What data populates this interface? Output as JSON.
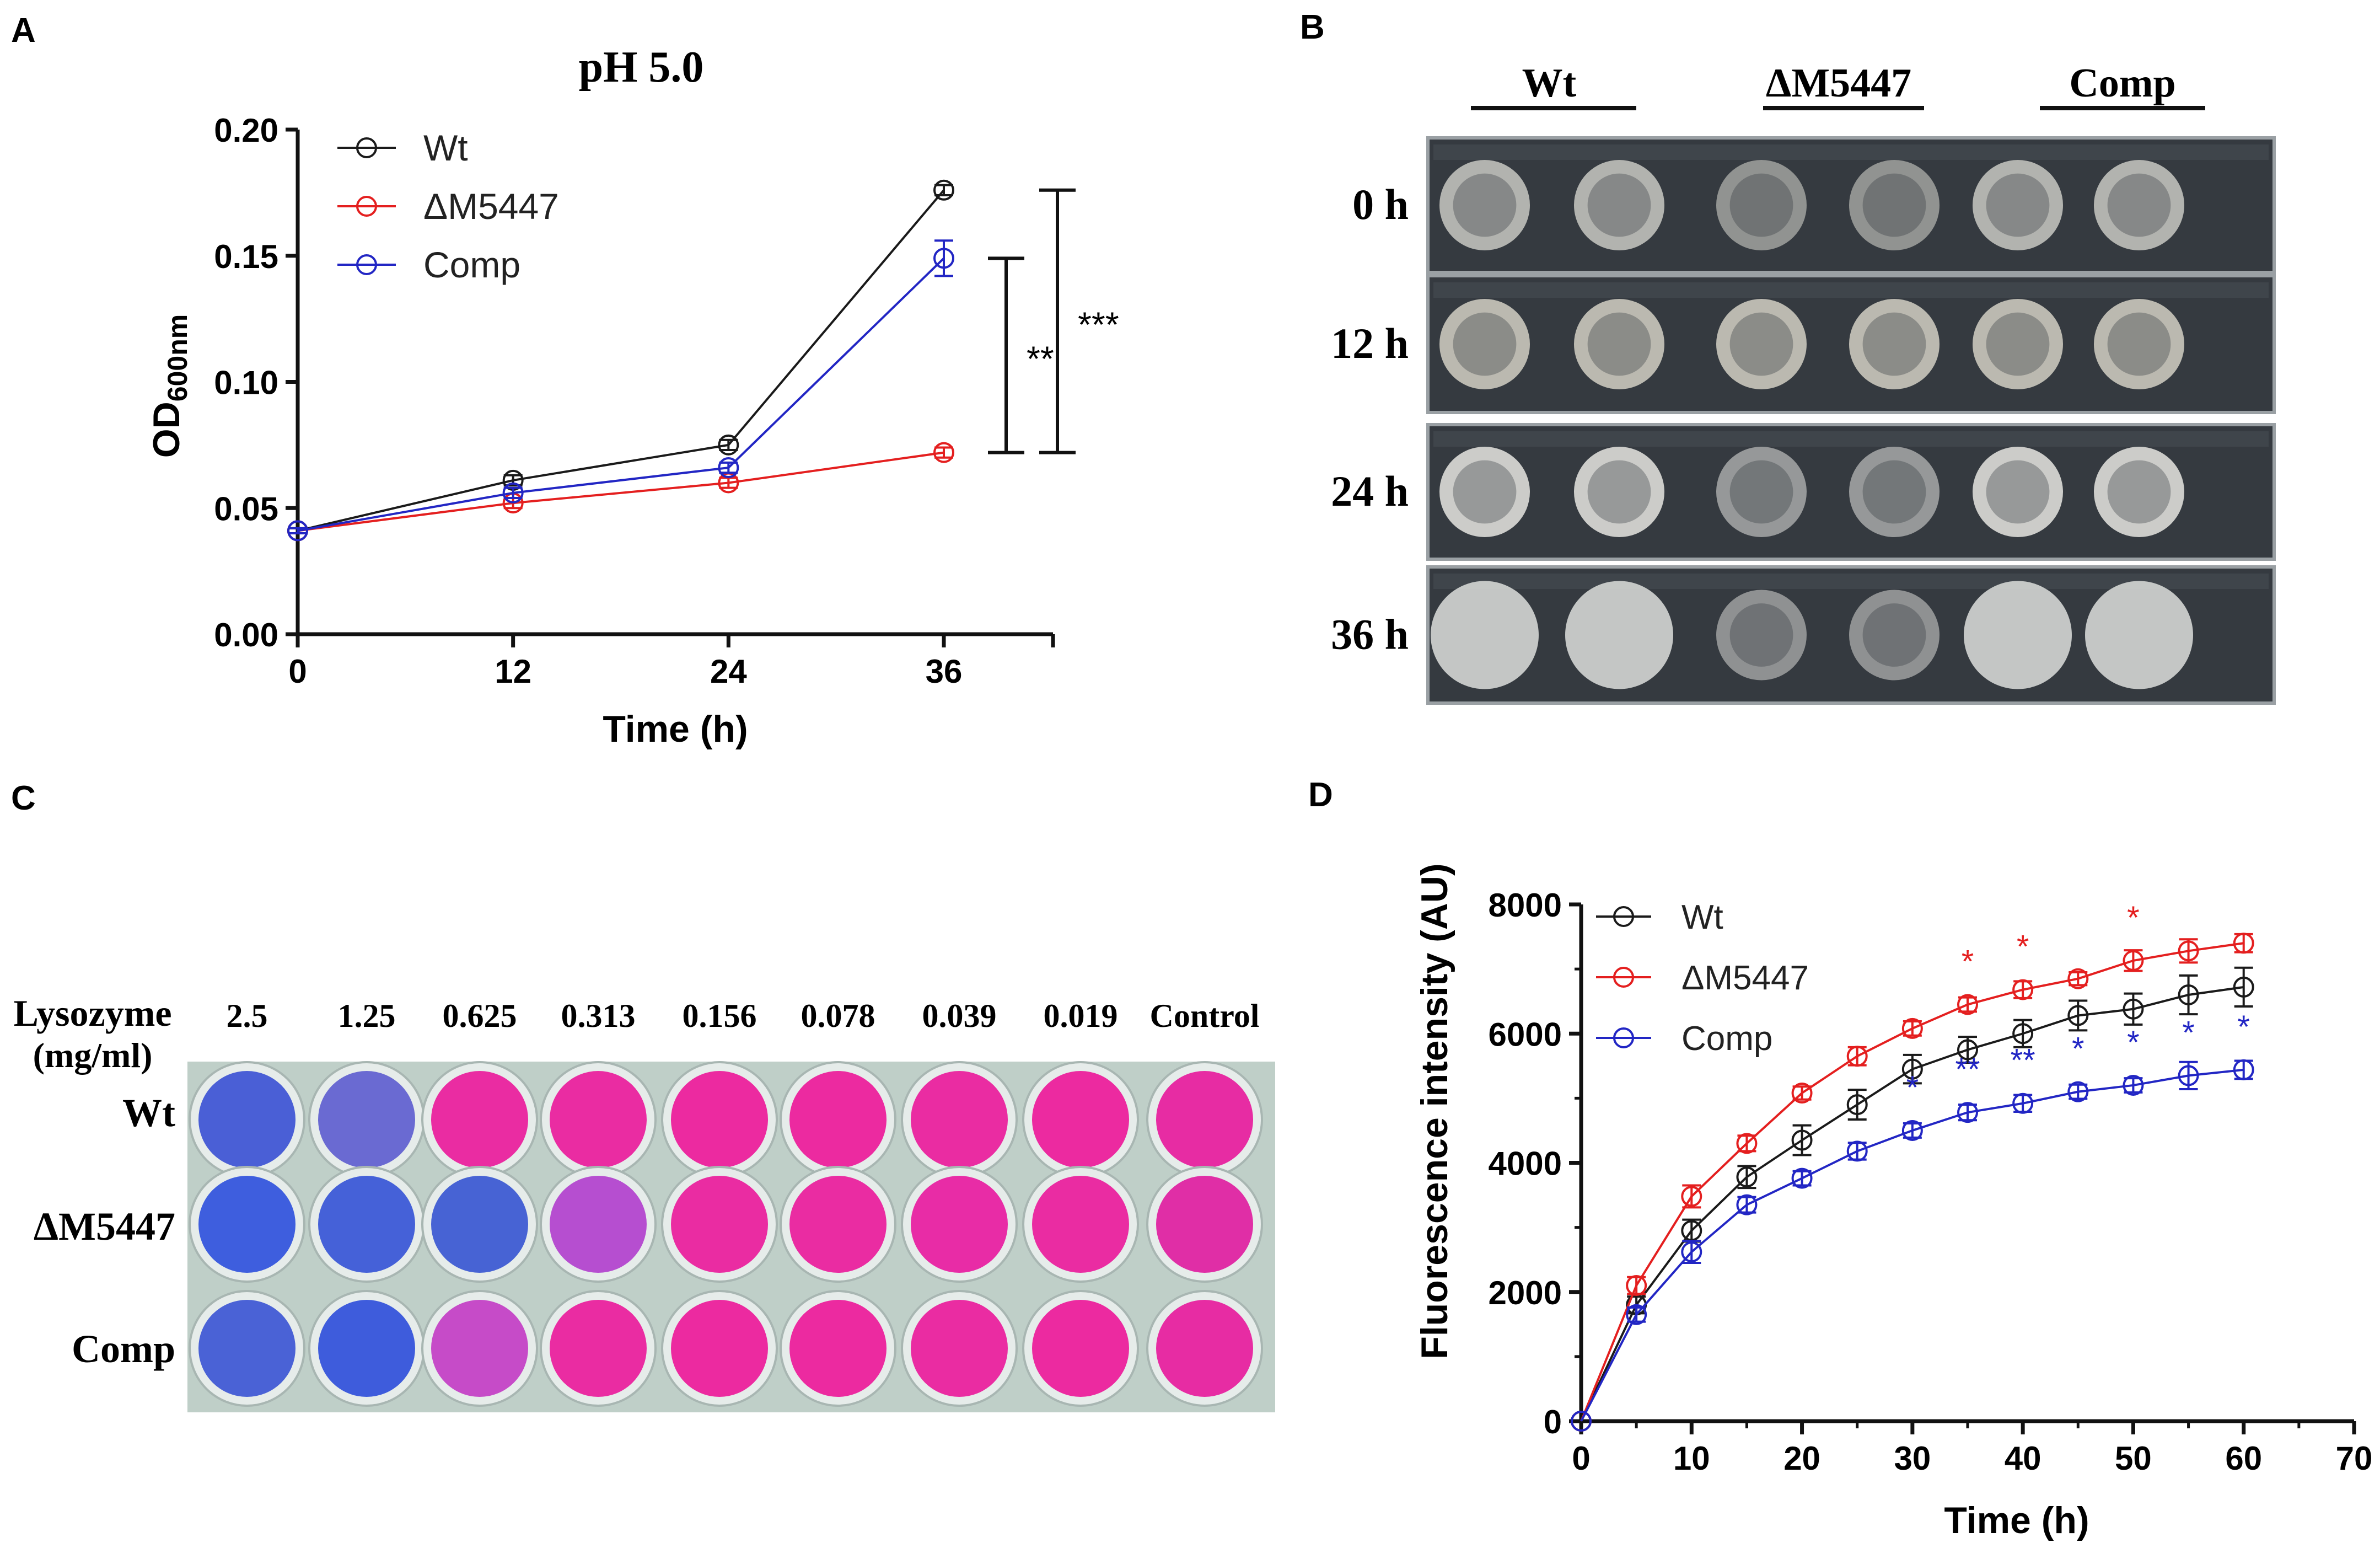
{
  "panels": {
    "a": "A",
    "b": "B",
    "c": "C",
    "d": "D"
  },
  "chart_data": [
    {
      "id": "A",
      "type": "line",
      "title": "pH 5.0",
      "xlabel": "Time (h)",
      "ylabel_main": "OD",
      "ylabel_sub": "600nm",
      "x": [
        0,
        12,
        24,
        36
      ],
      "xticks": [
        "0",
        "12",
        "24",
        "36"
      ],
      "yticks": [
        "0.00",
        "0.05",
        "0.10",
        "0.15",
        "0.20"
      ],
      "ylim": [
        0,
        0.2
      ],
      "series": [
        {
          "name": "Wt",
          "color": "#1a1a1a",
          "values": [
            0.041,
            0.061,
            0.075,
            0.176
          ],
          "err": [
            0.001,
            0.002,
            0.002,
            0.002
          ]
        },
        {
          "name": "ΔM5447",
          "color": "#e41f1f",
          "values": [
            0.041,
            0.052,
            0.06,
            0.072
          ],
          "err": [
            0.001,
            0.002,
            0.002,
            0.002
          ]
        },
        {
          "name": "Comp",
          "color": "#2226c4",
          "values": [
            0.041,
            0.056,
            0.066,
            0.149
          ],
          "err": [
            0.001,
            0.002,
            0.002,
            0.007
          ]
        }
      ],
      "significance": [
        {
          "label": "**",
          "from": 0.072,
          "to": 0.149
        },
        {
          "label": "***",
          "from": 0.072,
          "to": 0.176
        }
      ]
    },
    {
      "id": "D",
      "type": "line",
      "title": "",
      "xlabel": "Time (h)",
      "ylabel": "Fluorescence intensity (AU)",
      "x": [
        0,
        5,
        10,
        15,
        20,
        25,
        30,
        35,
        40,
        45,
        50,
        55,
        60
      ],
      "xticks": [
        "0",
        "10",
        "20",
        "30",
        "40",
        "50",
        "60",
        "70"
      ],
      "yticks": [
        "0",
        "2000",
        "4000",
        "6000",
        "8000"
      ],
      "xlim": [
        0,
        70
      ],
      "ylim": [
        0,
        8000
      ],
      "series": [
        {
          "name": "Wt",
          "color": "#1a1a1a",
          "values": [
            0,
            1800,
            2950,
            3780,
            4350,
            4900,
            5450,
            5750,
            6000,
            6280,
            6380,
            6600,
            6720
          ],
          "err": [
            0,
            130,
            170,
            170,
            230,
            230,
            220,
            200,
            210,
            230,
            240,
            300,
            300
          ]
        },
        {
          "name": "ΔM5447",
          "color": "#e41f1f",
          "values": [
            0,
            2100,
            3480,
            4300,
            5080,
            5650,
            6080,
            6450,
            6680,
            6850,
            7130,
            7280,
            7400
          ],
          "err": [
            0,
            130,
            170,
            120,
            100,
            140,
            110,
            110,
            130,
            100,
            160,
            180,
            140
          ]
        },
        {
          "name": "Comp",
          "color": "#2226c4",
          "values": [
            0,
            1650,
            2620,
            3350,
            3760,
            4180,
            4500,
            4780,
            4920,
            5100,
            5200,
            5350,
            5440
          ],
          "err": [
            0,
            110,
            170,
            120,
            110,
            130,
            110,
            120,
            130,
            110,
            110,
            210,
            140
          ]
        }
      ],
      "stars": [
        {
          "x": 35,
          "y": 6450,
          "label": "*",
          "color": "#e41f1f"
        },
        {
          "x": 40,
          "y": 6680,
          "label": "*",
          "color": "#e41f1f"
        },
        {
          "x": 50,
          "y": 7130,
          "label": "*",
          "color": "#e41f1f"
        },
        {
          "x": 30,
          "y": 4500,
          "label": "*",
          "color": "#2226c4"
        },
        {
          "x": 35,
          "y": 4780,
          "label": "**",
          "color": "#2226c4"
        },
        {
          "x": 40,
          "y": 4920,
          "label": "**",
          "color": "#2226c4"
        },
        {
          "x": 45,
          "y": 5100,
          "label": "*",
          "color": "#2226c4"
        },
        {
          "x": 50,
          "y": 5200,
          "label": "*",
          "color": "#2226c4"
        },
        {
          "x": 55,
          "y": 5350,
          "label": "*",
          "color": "#2226c4"
        },
        {
          "x": 60,
          "y": 5440,
          "label": "*",
          "color": "#2226c4"
        }
      ]
    }
  ],
  "panel_b": {
    "groups": [
      "Wt",
      "ΔM5447",
      "Comp"
    ],
    "times": [
      "0 h",
      "12 h",
      "24 h",
      "36 h"
    ]
  },
  "panel_c": {
    "row_header_line1": "Lysozyme",
    "row_header_line2": "(mg/ml)",
    "concentrations": [
      "2.5",
      "1.25",
      "0.625",
      "0.313",
      "0.156",
      "0.078",
      "0.039",
      "0.019",
      "Control"
    ],
    "strains": [
      "Wt",
      "ΔM5447",
      "Comp"
    ],
    "well_colors": [
      [
        "#4a5fd6",
        "#6a6ad2",
        "#ea2ca2",
        "#ea2ca2",
        "#ec2aa0",
        "#ec2aa0",
        "#ea2ca2",
        "#ec2aa0",
        "#e72ca3"
      ],
      [
        "#3e5ede",
        "#4561d8",
        "#4763d4",
        "#b64ed0",
        "#ea2ca2",
        "#ea2ca2",
        "#e82ca6",
        "#ea2ca2",
        "#e02ea6"
      ],
      [
        "#4a62d6",
        "#3e5cdc",
        "#c64bc8",
        "#ea2ca2",
        "#ec2aa0",
        "#ec2aa0",
        "#ea2ca2",
        "#ec2aa0",
        "#e72ca3"
      ]
    ]
  }
}
